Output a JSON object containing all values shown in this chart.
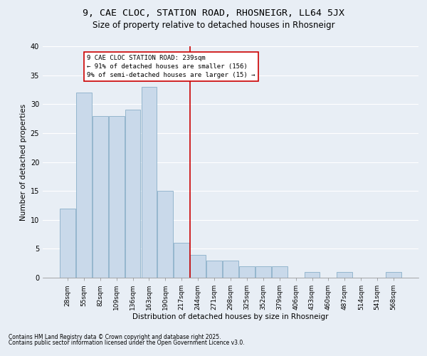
{
  "title1": "9, CAE CLOC, STATION ROAD, RHOSNEIGR, LL64 5JX",
  "title2": "Size of property relative to detached houses in Rhosneigr",
  "xlabel": "Distribution of detached houses by size in Rhosneigr",
  "ylabel": "Number of detached properties",
  "categories": [
    "28sqm",
    "55sqm",
    "82sqm",
    "109sqm",
    "136sqm",
    "163sqm",
    "190sqm",
    "217sqm",
    "244sqm",
    "271sqm",
    "298sqm",
    "325sqm",
    "352sqm",
    "379sqm",
    "406sqm",
    "433sqm",
    "460sqm",
    "487sqm",
    "514sqm",
    "541sqm",
    "568sqm"
  ],
  "values": [
    12,
    32,
    28,
    28,
    29,
    33,
    15,
    6,
    4,
    3,
    3,
    2,
    2,
    2,
    0,
    1,
    0,
    1,
    0,
    0,
    1
  ],
  "bar_color": "#c9d9ea",
  "bar_edge_color": "#8aafc8",
  "vline_color": "#cc0000",
  "annotation_text": "9 CAE CLOC STATION ROAD: 239sqm\n← 91% of detached houses are smaller (156)\n9% of semi-detached houses are larger (15) →",
  "annotation_box_color": "#ffffff",
  "annotation_border_color": "#cc0000",
  "footnote1": "Contains HM Land Registry data © Crown copyright and database right 2025.",
  "footnote2": "Contains public sector information licensed under the Open Government Licence v3.0.",
  "ylim": [
    0,
    40
  ],
  "yticks": [
    0,
    5,
    10,
    15,
    20,
    25,
    30,
    35,
    40
  ],
  "background_color": "#e8eef5",
  "grid_color": "#ffffff",
  "title_fontsize": 9.5,
  "subtitle_fontsize": 8.5,
  "axis_label_fontsize": 7.5,
  "tick_fontsize": 6.5,
  "annot_fontsize": 6.5,
  "footnote_fontsize": 5.5
}
